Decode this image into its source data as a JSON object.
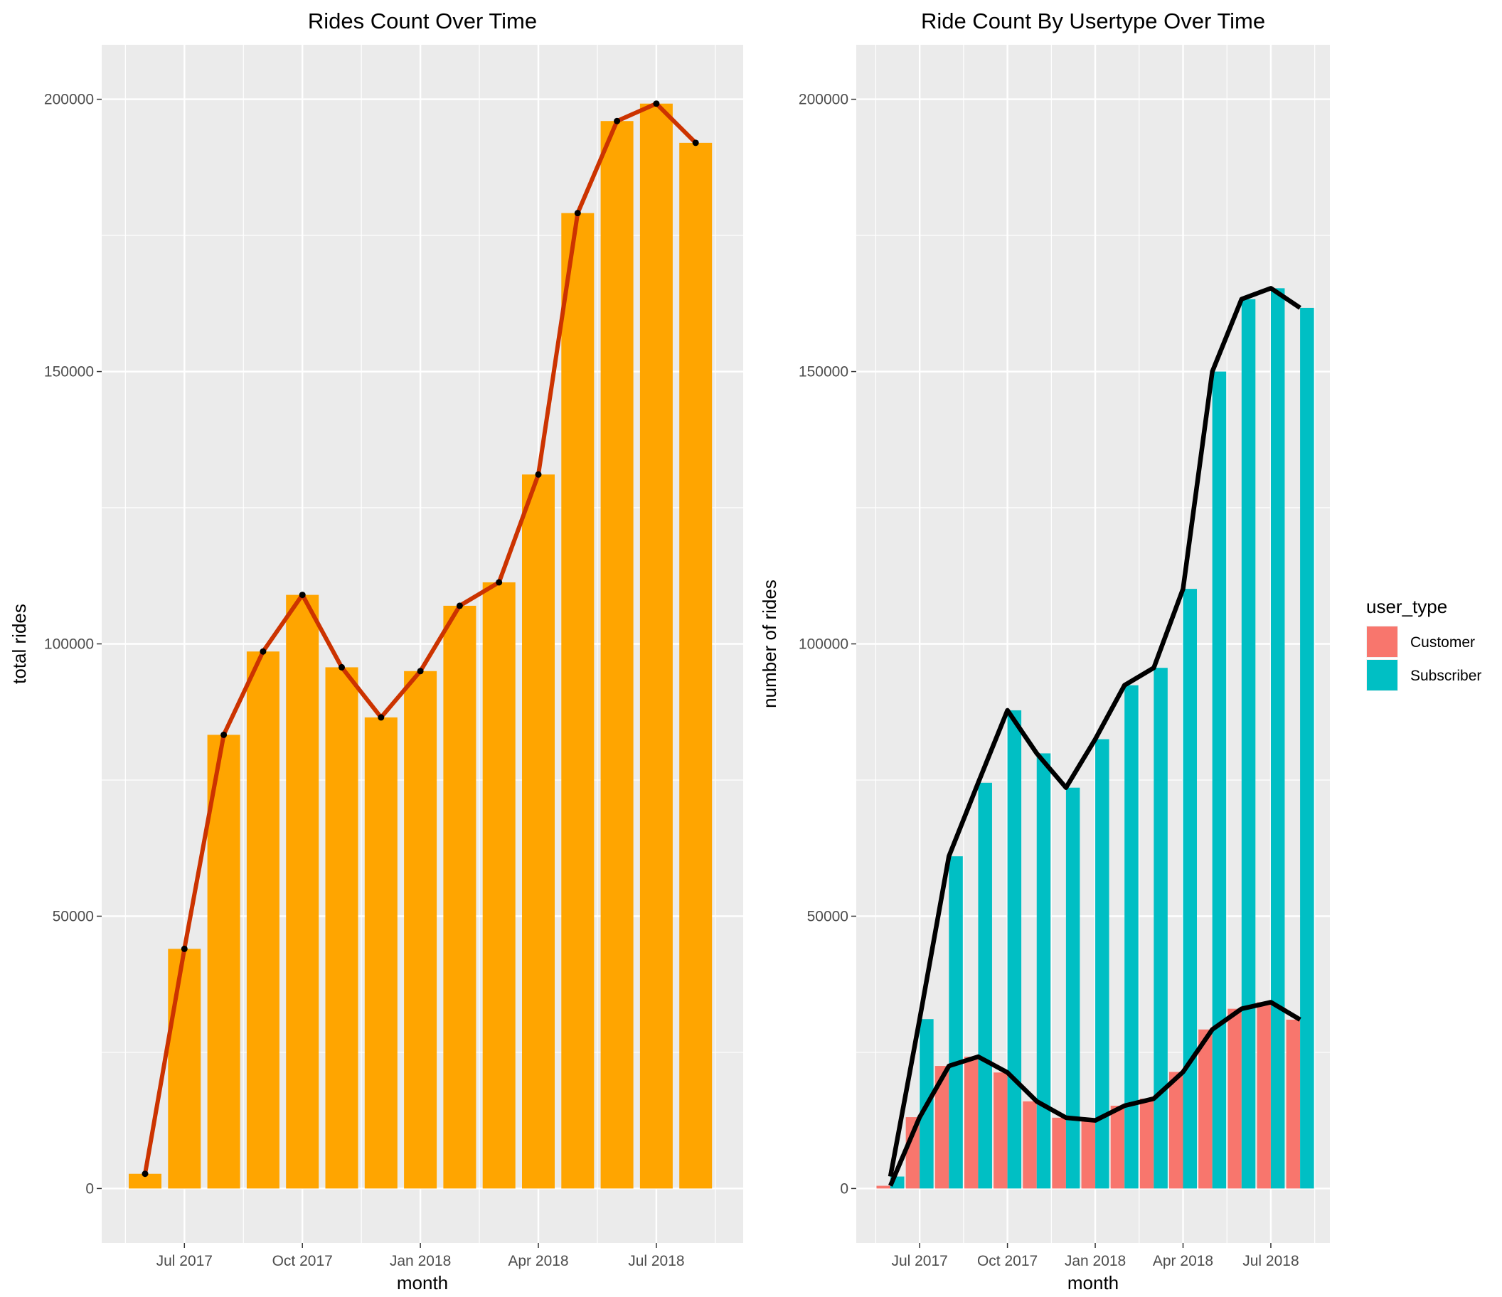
{
  "chart_data": [
    {
      "type": "bar",
      "title": "Rides Count Over Time",
      "xlabel": "month",
      "ylabel": "total rides",
      "x_ticks": [
        "Jul 2017",
        "Oct 2017",
        "Jan 2018",
        "Apr 2018",
        "Jul 2018"
      ],
      "y_ticks": [
        "0",
        "50000",
        "100000",
        "150000",
        "200000"
      ],
      "ylim": [
        -10000,
        210000
      ],
      "grid": true,
      "colors": {
        "bar": "#ffa500",
        "line": "#cc3300",
        "point": "#000000",
        "panel": "#ebebeb"
      },
      "categories": [
        "2017-06",
        "2017-07",
        "2017-08",
        "2017-09",
        "2017-10",
        "2017-11",
        "2017-12",
        "2018-01",
        "2018-02",
        "2018-03",
        "2018-04",
        "2018-05",
        "2018-06",
        "2018-07",
        "2018-08"
      ],
      "values": [
        2700,
        44000,
        83300,
        98600,
        109000,
        95700,
        86500,
        95000,
        107000,
        111300,
        131100,
        179100,
        196000,
        199200,
        192000
      ]
    },
    {
      "type": "bar",
      "title": "Ride Count By Usertype Over Time",
      "xlabel": "month",
      "ylabel": "number of rides",
      "x_ticks": [
        "Jul 2017",
        "Oct 2017",
        "Jan 2018",
        "Apr 2018",
        "Jul 2018"
      ],
      "y_ticks": [
        "0",
        "50000",
        "100000",
        "150000",
        "200000"
      ],
      "ylim": [
        -10000,
        210000
      ],
      "grid": true,
      "legend": {
        "title": "user_type",
        "position": "right"
      },
      "colors": {
        "line": "#000000",
        "panel": "#ebebeb"
      },
      "categories": [
        "2017-06",
        "2017-07",
        "2017-08",
        "2017-09",
        "2017-10",
        "2017-11",
        "2017-12",
        "2018-01",
        "2018-02",
        "2018-03",
        "2018-04",
        "2018-05",
        "2018-06",
        "2018-07",
        "2018-08"
      ],
      "series": [
        {
          "name": "Customer",
          "color": "#f8766d",
          "values": [
            500,
            13100,
            22500,
            24200,
            21300,
            16000,
            13000,
            12500,
            15200,
            16500,
            21400,
            29200,
            33000,
            34200,
            31000
          ]
        },
        {
          "name": "Subscriber",
          "color": "#00bfc4",
          "values": [
            2200,
            31100,
            61000,
            74500,
            87800,
            79900,
            73600,
            82500,
            92400,
            95600,
            110100,
            150000,
            163300,
            165300,
            161700
          ]
        }
      ]
    }
  ]
}
